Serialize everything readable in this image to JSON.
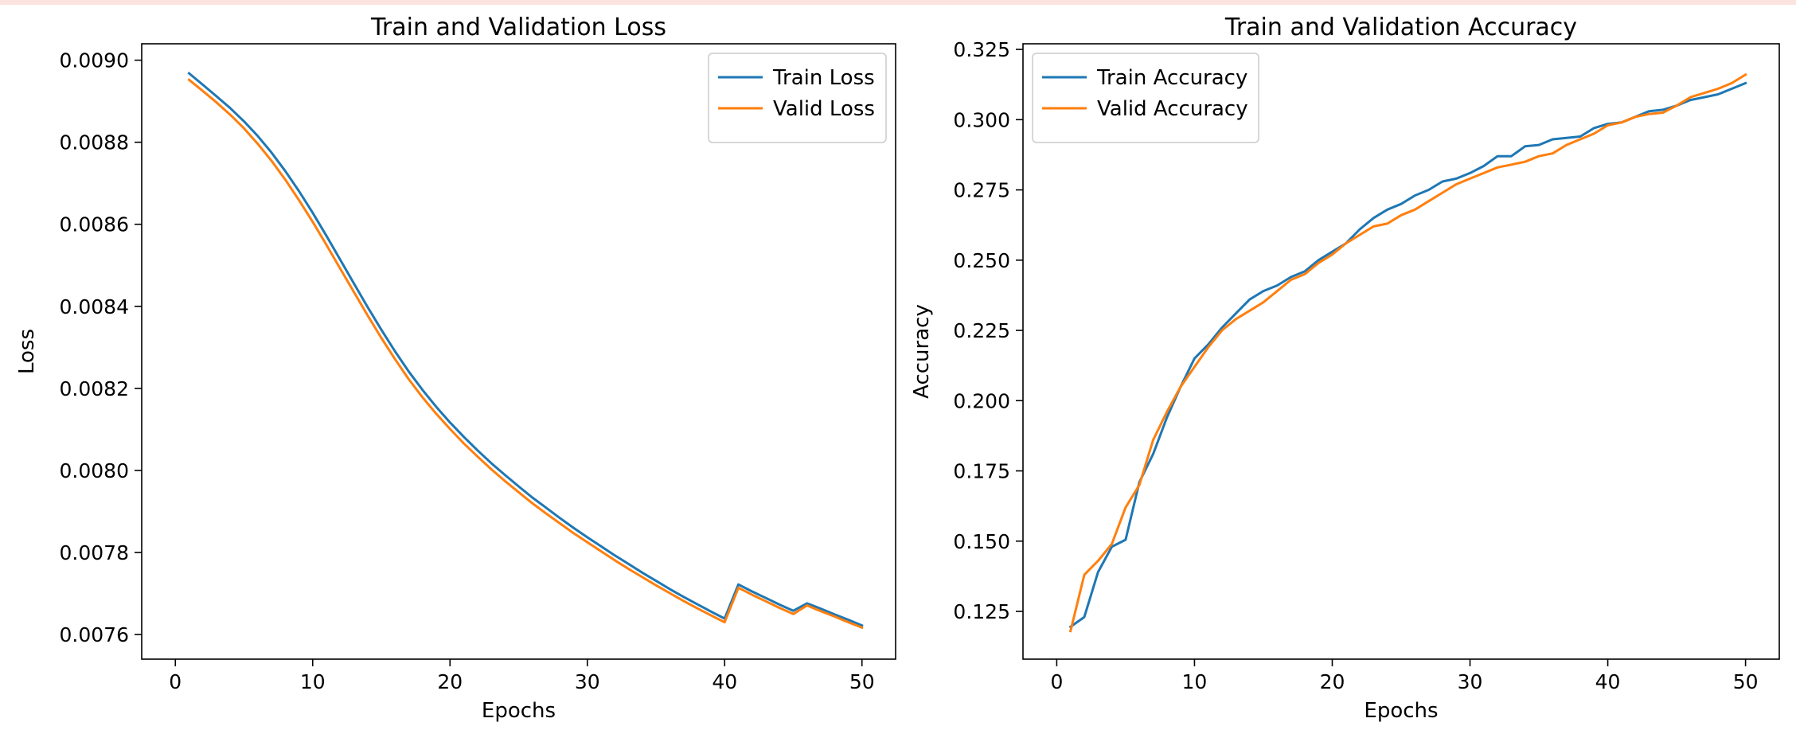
{
  "chart_data": [
    {
      "type": "line",
      "title": "Train and Validation Loss",
      "xlabel": "Epochs",
      "ylabel": "Loss",
      "xlim": [
        -2.45,
        52.45
      ],
      "ylim": [
        0.00754,
        0.00904
      ],
      "xticks": [
        0,
        10,
        20,
        30,
        40,
        50
      ],
      "yticks": [
        0.0076,
        0.0078,
        0.008,
        0.0082,
        0.0084,
        0.0086,
        0.0088,
        0.009
      ],
      "ytick_labels": [
        "0.0076",
        "0.0078",
        "0.0080",
        "0.0082",
        "0.0084",
        "0.0086",
        "0.0088",
        "0.0090"
      ],
      "legend": "upper right",
      "grid": false,
      "x": [
        1,
        2,
        3,
        4,
        5,
        6,
        7,
        8,
        9,
        10,
        11,
        12,
        13,
        14,
        15,
        16,
        17,
        18,
        19,
        20,
        21,
        22,
        23,
        24,
        25,
        26,
        27,
        28,
        29,
        30,
        31,
        32,
        33,
        34,
        35,
        36,
        37,
        38,
        39,
        40,
        41,
        42,
        43,
        44,
        45,
        46,
        47,
        48,
        49,
        50
      ],
      "series": [
        {
          "name": "Train Loss",
          "color": "#1f77b4",
          "values": [
            0.008968,
            0.00894,
            0.008912,
            0.008883,
            0.008851,
            0.008815,
            0.008775,
            0.00873,
            0.008681,
            0.008628,
            0.008572,
            0.008514,
            0.008456,
            0.008398,
            0.008343,
            0.00829,
            0.008241,
            0.008196,
            0.008155,
            0.008117,
            0.008082,
            0.008049,
            0.008018,
            0.007989,
            0.007961,
            0.007934,
            0.007909,
            0.007884,
            0.00786,
            0.007837,
            0.007815,
            0.007793,
            0.007772,
            0.007751,
            0.007731,
            0.007711,
            0.007692,
            0.007674,
            0.007656,
            0.007639,
            0.007722,
            0.007705,
            0.007689,
            0.007673,
            0.007658,
            0.007676,
            0.007663,
            0.007649,
            0.007636,
            0.007622
          ]
        },
        {
          "name": "Valid Loss",
          "color": "#ff7f0e",
          "values": [
            0.008952,
            0.008925,
            0.008897,
            0.008867,
            0.008834,
            0.008796,
            0.008755,
            0.008709,
            0.008659,
            0.008606,
            0.00855,
            0.008492,
            0.008435,
            0.008378,
            0.008323,
            0.008271,
            0.008222,
            0.008178,
            0.008138,
            0.008101,
            0.008066,
            0.008034,
            0.008003,
            0.007974,
            0.007947,
            0.00792,
            0.007895,
            0.007871,
            0.007847,
            0.007825,
            0.007803,
            0.007781,
            0.00776,
            0.00774,
            0.00772,
            0.007701,
            0.007682,
            0.007664,
            0.007647,
            0.00763,
            0.007714,
            0.007697,
            0.007681,
            0.007665,
            0.00765,
            0.007671,
            0.007657,
            0.007644,
            0.00763,
            0.007617
          ]
        }
      ]
    },
    {
      "type": "line",
      "title": "Train and Validation Accuracy",
      "xlabel": "Epochs",
      "ylabel": "Accuracy",
      "xlim": [
        -2.45,
        52.45
      ],
      "ylim": [
        0.108,
        0.327
      ],
      "xticks": [
        0,
        10,
        20,
        30,
        40,
        50
      ],
      "yticks": [
        0.125,
        0.15,
        0.175,
        0.2,
        0.225,
        0.25,
        0.275,
        0.3,
        0.325
      ],
      "ytick_labels": [
        "0.125",
        "0.150",
        "0.175",
        "0.200",
        "0.225",
        "0.250",
        "0.275",
        "0.300",
        "0.325"
      ],
      "legend": "upper left",
      "grid": false,
      "x": [
        1,
        2,
        3,
        4,
        5,
        6,
        7,
        8,
        9,
        10,
        11,
        12,
        13,
        14,
        15,
        16,
        17,
        18,
        19,
        20,
        21,
        22,
        23,
        24,
        25,
        26,
        27,
        28,
        29,
        30,
        31,
        32,
        33,
        34,
        35,
        36,
        37,
        38,
        39,
        40,
        41,
        42,
        43,
        44,
        45,
        46,
        47,
        48,
        49,
        50
      ],
      "series": [
        {
          "name": "Train Accuracy",
          "color": "#1f77b4",
          "values": [
            0.1195,
            0.123,
            0.139,
            0.148,
            0.1505,
            0.171,
            0.181,
            0.194,
            0.205,
            0.215,
            0.22,
            0.226,
            0.231,
            0.236,
            0.239,
            0.241,
            0.244,
            0.246,
            0.25,
            0.253,
            0.256,
            0.261,
            0.265,
            0.268,
            0.27,
            0.273,
            0.275,
            0.278,
            0.279,
            0.281,
            0.2835,
            0.287,
            0.287,
            0.2905,
            0.291,
            0.293,
            0.2935,
            0.294,
            0.297,
            0.2985,
            0.299,
            0.301,
            0.303,
            0.3035,
            0.305,
            0.307,
            0.308,
            0.309,
            0.311,
            0.313
          ]
        },
        {
          "name": "Valid Accuracy",
          "color": "#ff7f0e",
          "values": [
            0.118,
            0.138,
            0.143,
            0.149,
            0.162,
            0.17,
            0.186,
            0.196,
            0.205,
            0.212,
            0.219,
            0.225,
            0.229,
            0.232,
            0.235,
            0.239,
            0.243,
            0.245,
            0.249,
            0.252,
            0.256,
            0.259,
            0.262,
            0.263,
            0.266,
            0.268,
            0.271,
            0.274,
            0.277,
            0.279,
            0.281,
            0.283,
            0.284,
            0.285,
            0.287,
            0.288,
            0.291,
            0.293,
            0.295,
            0.298,
            0.299,
            0.301,
            0.302,
            0.3025,
            0.305,
            0.308,
            0.3095,
            0.311,
            0.313,
            0.316
          ]
        }
      ]
    }
  ]
}
